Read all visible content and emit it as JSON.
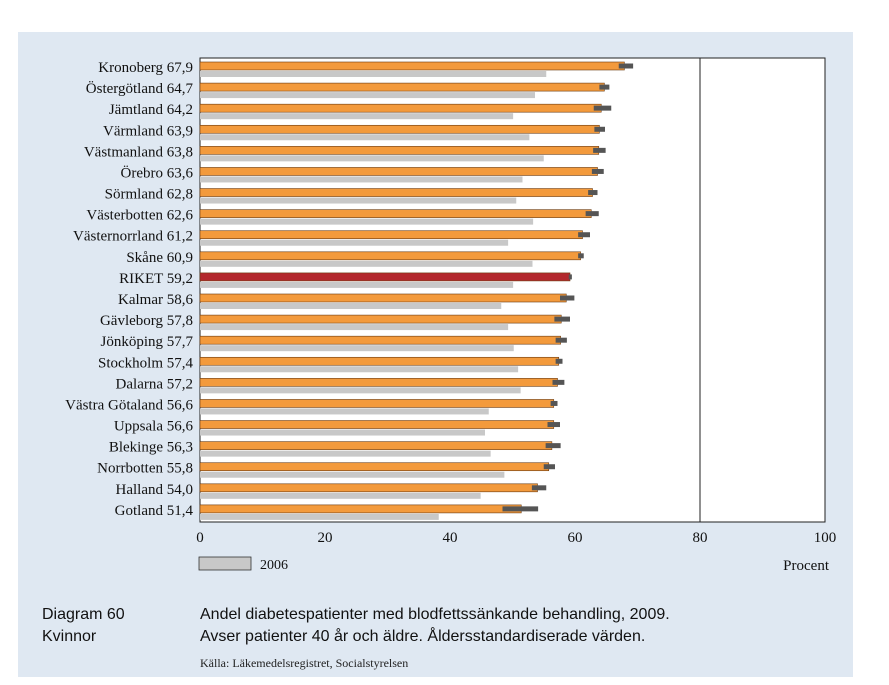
{
  "chart_data": {
    "type": "bar",
    "orientation": "horizontal",
    "categories": [
      "Kronoberg",
      "Östergötland",
      "Jämtland",
      "Värmland",
      "Västmanland",
      "Örebro",
      "Sörmland",
      "Västerbotten",
      "Västernorrland",
      "Skåne",
      "RIKET",
      "Kalmar",
      "Gävleborg",
      "Jönköping",
      "Stockholm",
      "Dalarna",
      "Västra Götaland",
      "Uppsala",
      "Blekinge",
      "Norrbotten",
      "Halland",
      "Gotland"
    ],
    "value_labels": [
      "67,9",
      "64,7",
      "64,2",
      "63,9",
      "63,8",
      "63,6",
      "62,8",
      "62,6",
      "61,2",
      "60,9",
      "59,2",
      "58,6",
      "57,8",
      "57,7",
      "57,4",
      "57,2",
      "56,6",
      "56,6",
      "56,3",
      "55,8",
      "54,0",
      "51,4"
    ],
    "series": [
      {
        "name": "",
        "values": [
          67.9,
          64.7,
          64.2,
          63.9,
          63.8,
          63.6,
          62.8,
          62.6,
          61.2,
          60.9,
          59.2,
          58.6,
          57.8,
          57.7,
          57.4,
          57.2,
          56.6,
          56.6,
          56.3,
          55.8,
          54.0,
          51.4
        ],
        "ci_low": [
          67.0,
          63.9,
          63.0,
          63.1,
          62.9,
          62.7,
          62.1,
          61.7,
          60.5,
          60.5,
          59.0,
          57.6,
          56.7,
          56.9,
          56.9,
          56.4,
          56.1,
          55.6,
          55.3,
          55.0,
          53.1,
          48.4
        ],
        "ci_high": [
          69.3,
          65.5,
          65.8,
          64.8,
          64.9,
          64.6,
          63.6,
          63.8,
          62.4,
          61.4,
          59.5,
          59.9,
          59.2,
          58.7,
          58.0,
          58.3,
          57.2,
          57.6,
          57.7,
          56.8,
          55.4,
          54.1
        ]
      },
      {
        "name": "2006",
        "values": [
          55.4,
          53.6,
          50.1,
          52.7,
          55.0,
          51.6,
          50.6,
          53.3,
          49.3,
          53.2,
          50.1,
          48.2,
          49.3,
          50.2,
          50.9,
          51.3,
          46.2,
          45.6,
          46.5,
          48.7,
          44.9,
          38.2
        ]
      }
    ],
    "highlight_category": "RIKET",
    "xlim": [
      0,
      100
    ],
    "xticks": [
      0,
      20,
      40,
      60,
      80,
      100
    ],
    "xticks_labels": [
      "0",
      "20",
      "40",
      "60",
      "80",
      "100"
    ],
    "xlabel": "Procent",
    "reference_line": 80,
    "legend": {
      "entries": [
        "2006"
      ],
      "placement": "bottom-left"
    },
    "colors": {
      "current": "#f39a3c",
      "previous": "#c8c8c8",
      "highlight": "#b3282d",
      "error": "#555555",
      "background": "#dfe8f2"
    }
  },
  "caption": {
    "diagram_number": "Diagram 60",
    "subgroup": "Kvinnor",
    "title_line1": "Andel diabetespatienter med blodfettssänkande behandling, 2009.",
    "title_line2": "Avser patienter 40 år och äldre. Åldersstandardiserade värden.",
    "source": "Källa: Läkemedelsregistret, Socialstyrelsen"
  }
}
